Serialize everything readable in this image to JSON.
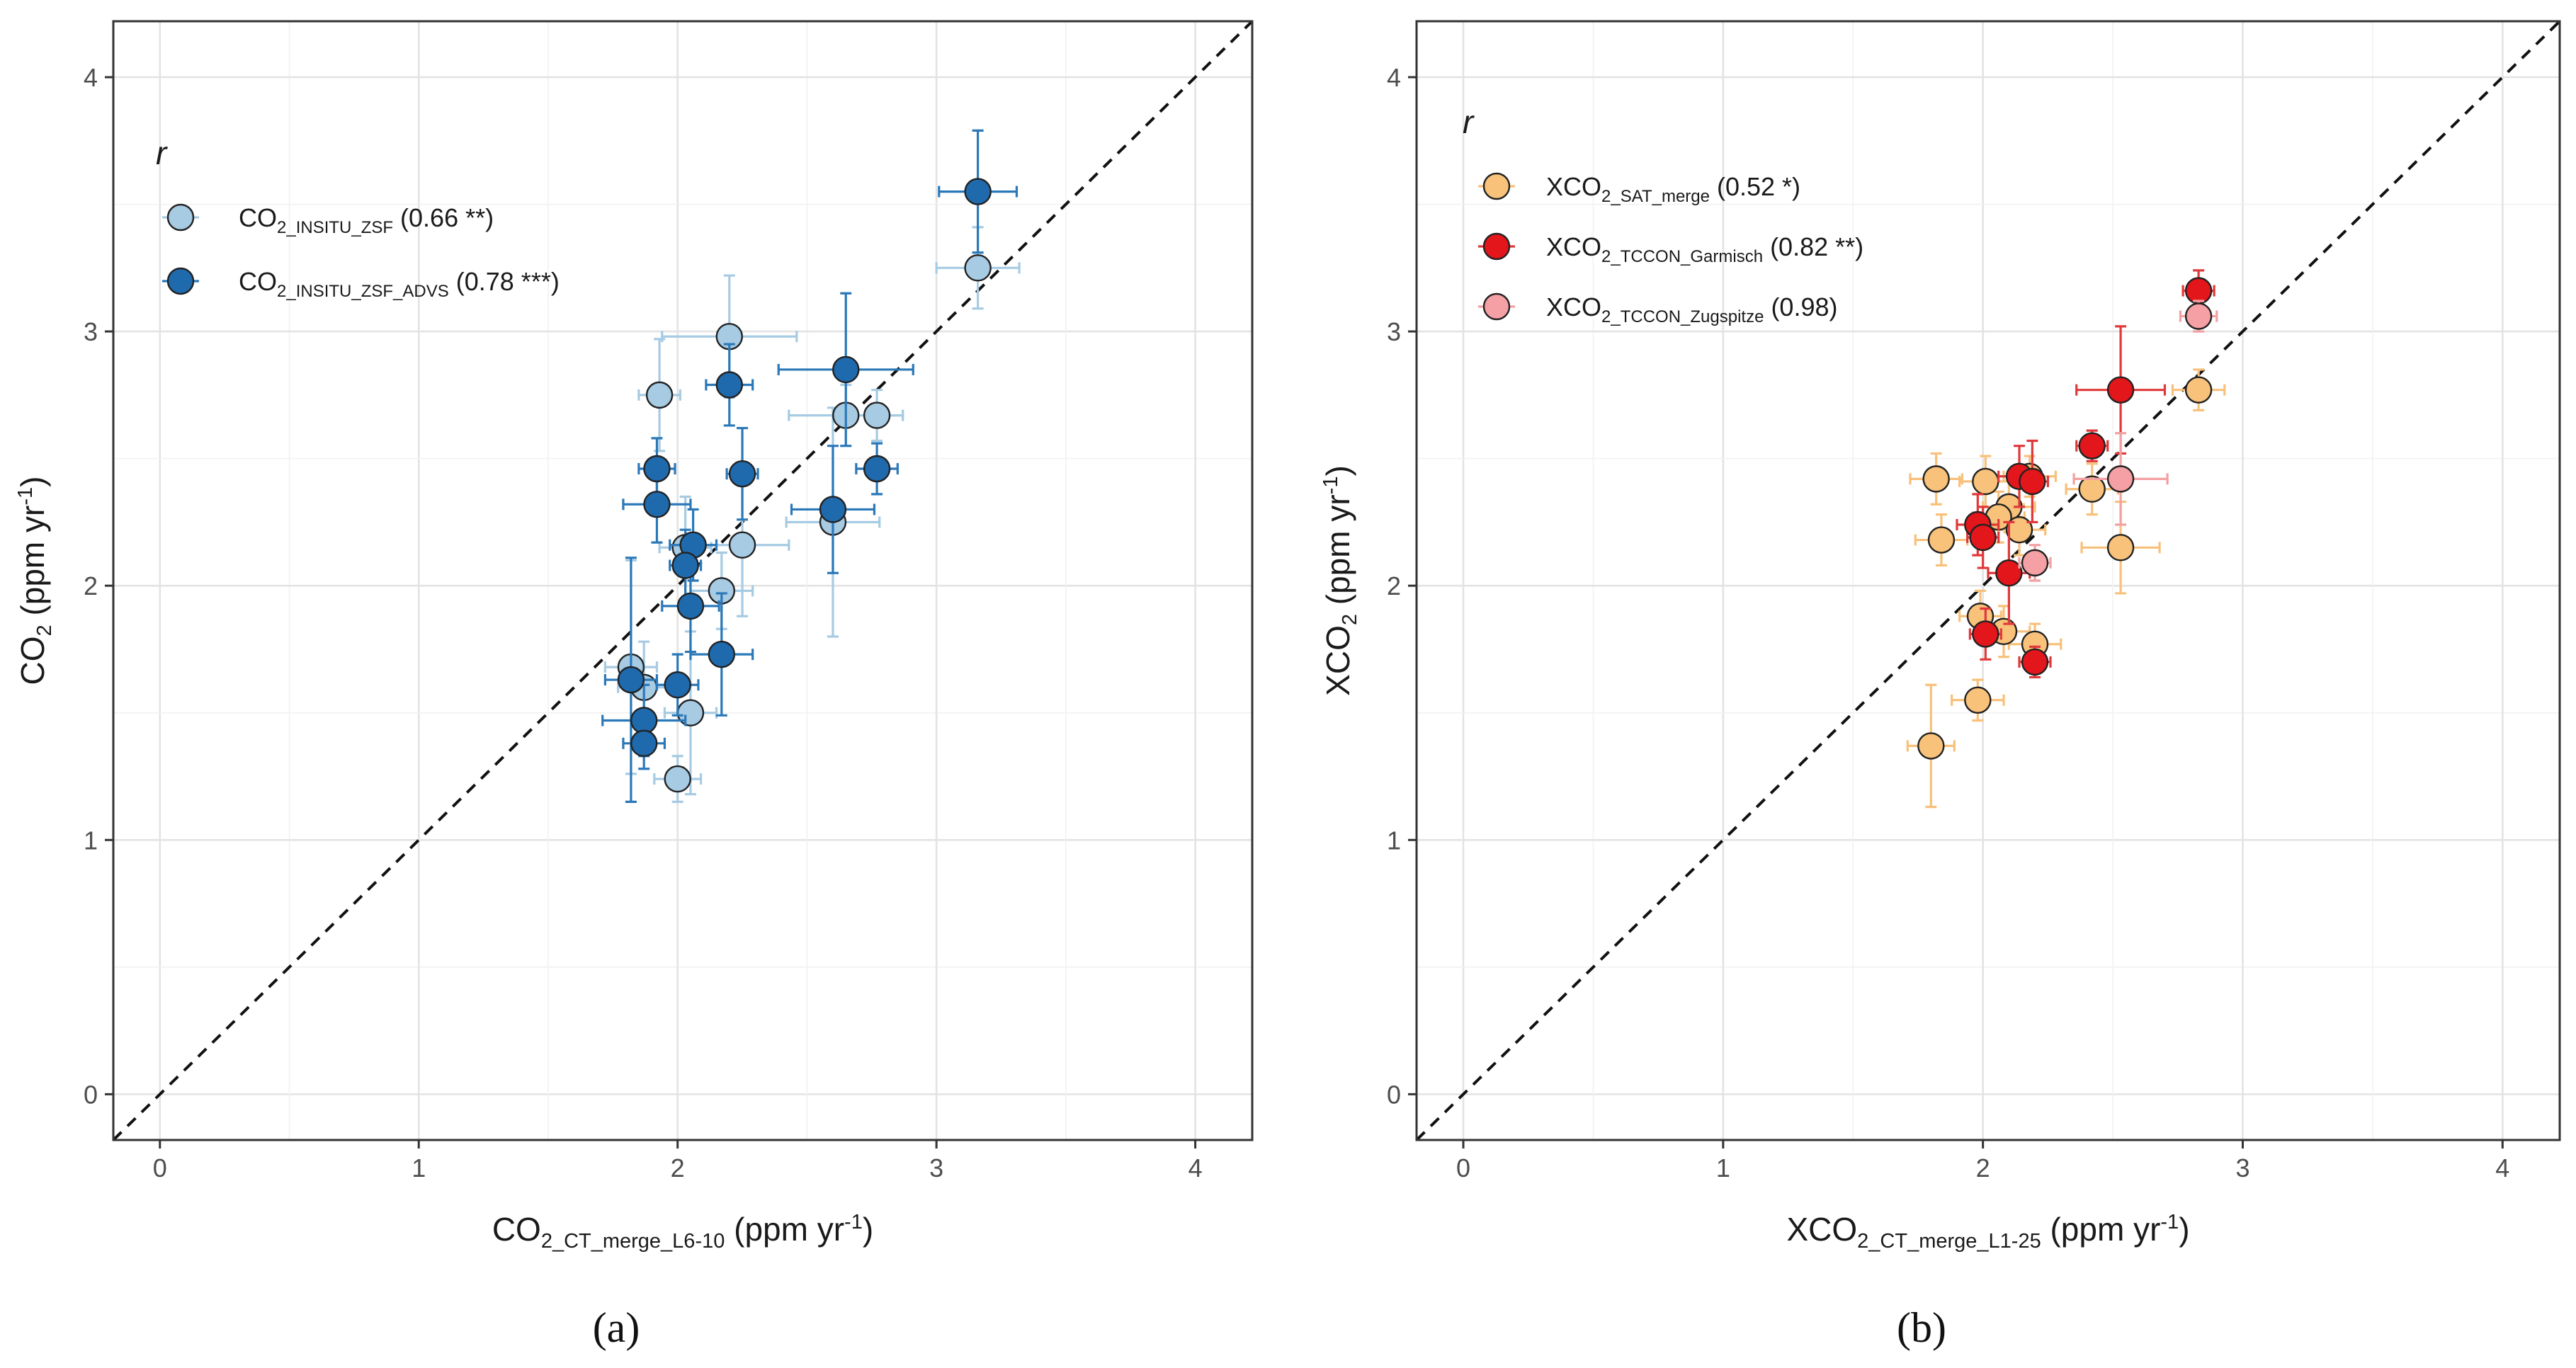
{
  "chart_data": [
    {
      "type": "scatter",
      "panel_label": "(a)",
      "xlabel": {
        "main": "CO",
        "sub": "2_CT_merge_L6-10",
        "rest": " (ppm yr",
        "sup": "-1",
        "end": ")"
      },
      "ylabel": {
        "main": "CO",
        "sub": "2",
        "rest": " (ppm yr",
        "sup": "-1",
        "end": ")"
      },
      "xlim": [
        -0.18,
        4.22
      ],
      "ylim": [
        -0.18,
        4.22
      ],
      "xticks": [
        "0",
        "1",
        "2",
        "3",
        "4"
      ],
      "yticks": [
        "0",
        "1",
        "2",
        "3",
        "4"
      ],
      "grid": true,
      "reference_line": "1:1 dashed",
      "legend": {
        "title": "r",
        "position": "top-left",
        "entries": [
          {
            "main": "CO",
            "sub": "2_INSITU_ZSF",
            "rest": " (0.66 **)"
          },
          {
            "main": "CO",
            "sub": "2_INSITU_ZSF_ADVS",
            "rest": " (0.78 ***)"
          }
        ]
      },
      "series": [
        {
          "name": "CO2_INSITU_ZSF",
          "color": "#a6cbe3",
          "bar_color": "#a6cbe3",
          "points": [
            {
              "x": 3.16,
              "y": 3.25,
              "xerr": 0.16,
              "yerr": 0.16
            },
            {
              "x": 2.2,
              "y": 2.98,
              "xerr": 0.26,
              "yerr": 0.24
            },
            {
              "x": 1.93,
              "y": 2.75,
              "xerr": 0.08,
              "yerr": 0.22
            },
            {
              "x": 2.65,
              "y": 2.67,
              "xerr": 0.22,
              "yerr": 0.12
            },
            {
              "x": 2.77,
              "y": 2.67,
              "xerr": 0.1,
              "yerr": 0.1
            },
            {
              "x": 2.6,
              "y": 2.25,
              "xerr": 0.18,
              "yerr": 0.45
            },
            {
              "x": 2.25,
              "y": 2.16,
              "xerr": 0.18,
              "yerr": 0.28
            },
            {
              "x": 2.03,
              "y": 2.15,
              "xerr": 0.1,
              "yerr": 0.2
            },
            {
              "x": 2.17,
              "y": 1.98,
              "xerr": 0.12,
              "yerr": 0.15
            },
            {
              "x": 1.82,
              "y": 1.68,
              "xerr": 0.1,
              "yerr": 0.42
            },
            {
              "x": 1.87,
              "y": 1.6,
              "xerr": 0.1,
              "yerr": 0.18
            },
            {
              "x": 2.05,
              "y": 1.5,
              "xerr": 0.1,
              "yerr": 0.32
            },
            {
              "x": 2.0,
              "y": 1.24,
              "xerr": 0.09,
              "yerr": 0.09
            }
          ]
        },
        {
          "name": "CO2_INSITU_ZSF_ADVS",
          "color": "#1f6aad",
          "bar_color": "#2b78b8",
          "points": [
            {
              "x": 3.16,
              "y": 3.55,
              "xerr": 0.15,
              "yerr": 0.24
            },
            {
              "x": 2.65,
              "y": 2.85,
              "xerr": 0.26,
              "yerr": 0.3
            },
            {
              "x": 2.2,
              "y": 2.79,
              "xerr": 0.09,
              "yerr": 0.16
            },
            {
              "x": 1.92,
              "y": 2.46,
              "xerr": 0.07,
              "yerr": 0.12
            },
            {
              "x": 2.25,
              "y": 2.44,
              "xerr": 0.06,
              "yerr": 0.18
            },
            {
              "x": 2.77,
              "y": 2.46,
              "xerr": 0.08,
              "yerr": 0.1
            },
            {
              "x": 1.92,
              "y": 2.32,
              "xerr": 0.13,
              "yerr": 0.15
            },
            {
              "x": 2.6,
              "y": 2.3,
              "xerr": 0.16,
              "yerr": 0.25
            },
            {
              "x": 2.06,
              "y": 2.16,
              "xerr": 0.09,
              "yerr": 0.14
            },
            {
              "x": 2.03,
              "y": 2.08,
              "xerr": 0.06,
              "yerr": 0.14
            },
            {
              "x": 2.05,
              "y": 1.92,
              "xerr": 0.11,
              "yerr": 0.18
            },
            {
              "x": 2.17,
              "y": 1.73,
              "xerr": 0.12,
              "yerr": 0.24
            },
            {
              "x": 1.82,
              "y": 1.63,
              "xerr": 0.1,
              "yerr": 0.48
            },
            {
              "x": 2.0,
              "y": 1.61,
              "xerr": 0.08,
              "yerr": 0.12
            },
            {
              "x": 1.87,
              "y": 1.47,
              "xerr": 0.16,
              "yerr": 0.14
            },
            {
              "x": 1.87,
              "y": 1.38,
              "xerr": 0.08,
              "yerr": 0.1
            }
          ]
        }
      ]
    },
    {
      "type": "scatter",
      "panel_label": "(b)",
      "xlabel": {
        "main": "XCO",
        "sub": "2_CT_merge_L1-25",
        "rest": " (ppm yr",
        "sup": "-1",
        "end": ")"
      },
      "ylabel": {
        "main": "XCO",
        "sub": "2",
        "rest": " (ppm yr",
        "sup": "-1",
        "end": ")"
      },
      "xlim": [
        -0.18,
        4.22
      ],
      "ylim": [
        -0.18,
        4.22
      ],
      "xticks": [
        "0",
        "1",
        "2",
        "3",
        "4"
      ],
      "yticks": [
        "0",
        "1",
        "2",
        "3",
        "4"
      ],
      "grid": true,
      "reference_line": "1:1 dashed",
      "legend": {
        "title": "r",
        "position": "top-left",
        "entries": [
          {
            "main": "XCO",
            "sub": "2_SAT_merge",
            "rest": " (0.52 *)"
          },
          {
            "main": "XCO",
            "sub": "2_TCCON_Garmisch",
            "rest": " (0.82 **)"
          },
          {
            "main": "XCO",
            "sub": "2_TCCON_Zugspitze",
            "rest": " (0.98)"
          }
        ]
      },
      "series": [
        {
          "name": "XCO2_SAT_merge",
          "color": "#f9c27a",
          "bar_color": "#f8c07a",
          "points": [
            {
              "x": 2.83,
              "y": 2.77,
              "xerr": 0.1,
              "yerr": 0.08
            },
            {
              "x": 1.82,
              "y": 2.42,
              "xerr": 0.1,
              "yerr": 0.1
            },
            {
              "x": 2.01,
              "y": 2.41,
              "xerr": 0.1,
              "yerr": 0.1
            },
            {
              "x": 2.18,
              "y": 2.43,
              "xerr": 0.1,
              "yerr": 0.08
            },
            {
              "x": 2.42,
              "y": 2.38,
              "xerr": 0.1,
              "yerr": 0.1
            },
            {
              "x": 2.1,
              "y": 2.31,
              "xerr": 0.1,
              "yerr": 0.1
            },
            {
              "x": 2.06,
              "y": 2.27,
              "xerr": 0.1,
              "yerr": 0.1
            },
            {
              "x": 2.14,
              "y": 2.22,
              "xerr": 0.1,
              "yerr": 0.1
            },
            {
              "x": 1.84,
              "y": 2.18,
              "xerr": 0.1,
              "yerr": 0.1
            },
            {
              "x": 2.53,
              "y": 2.15,
              "xerr": 0.15,
              "yerr": 0.18
            },
            {
              "x": 1.99,
              "y": 1.88,
              "xerr": 0.08,
              "yerr": 0.1
            },
            {
              "x": 2.08,
              "y": 1.82,
              "xerr": 0.1,
              "yerr": 0.1
            },
            {
              "x": 2.2,
              "y": 1.77,
              "xerr": 0.1,
              "yerr": 0.08
            },
            {
              "x": 1.98,
              "y": 1.55,
              "xerr": 0.1,
              "yerr": 0.08
            },
            {
              "x": 1.8,
              "y": 1.37,
              "xerr": 0.09,
              "yerr": 0.24
            }
          ]
        },
        {
          "name": "XCO2_TCCON_Garmisch",
          "color": "#e2161b",
          "bar_color": "#e0383a",
          "points": [
            {
              "x": 2.83,
              "y": 3.16,
              "xerr": 0.06,
              "yerr": 0.08
            },
            {
              "x": 2.53,
              "y": 2.77,
              "xerr": 0.17,
              "yerr": 0.25
            },
            {
              "x": 2.42,
              "y": 2.55,
              "xerr": 0.06,
              "yerr": 0.06
            },
            {
              "x": 2.14,
              "y": 2.43,
              "xerr": 0.08,
              "yerr": 0.12
            },
            {
              "x": 2.19,
              "y": 2.41,
              "xerr": 0.06,
              "yerr": 0.16
            },
            {
              "x": 1.98,
              "y": 2.24,
              "xerr": 0.08,
              "yerr": 0.12
            },
            {
              "x": 2.0,
              "y": 2.19,
              "xerr": 0.06,
              "yerr": 0.12
            },
            {
              "x": 2.1,
              "y": 2.05,
              "xerr": 0.08,
              "yerr": 0.2
            },
            {
              "x": 2.01,
              "y": 1.81,
              "xerr": 0.06,
              "yerr": 0.1
            },
            {
              "x": 2.2,
              "y": 1.7,
              "xerr": 0.06,
              "yerr": 0.06
            }
          ]
        },
        {
          "name": "XCO2_TCCON_Zugspitze",
          "color": "#f5a0a4",
          "bar_color": "#f3a0a2",
          "points": [
            {
              "x": 2.83,
              "y": 3.06,
              "xerr": 0.07,
              "yerr": 0.06
            },
            {
              "x": 2.53,
              "y": 2.42,
              "xerr": 0.18,
              "yerr": 0.18
            },
            {
              "x": 2.2,
              "y": 2.09,
              "xerr": 0.06,
              "yerr": 0.07
            }
          ]
        }
      ]
    }
  ]
}
